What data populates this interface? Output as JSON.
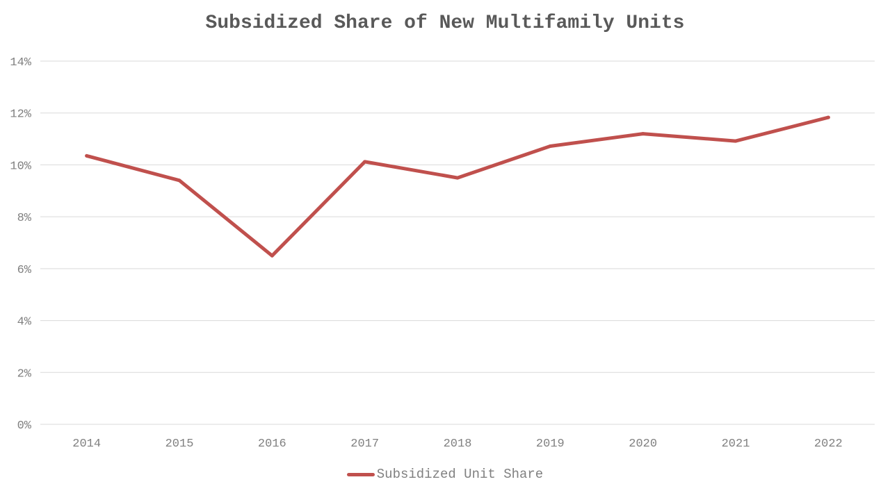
{
  "chart_data": {
    "type": "line",
    "title": "Subsidized Share of New Multifamily Units",
    "x": [
      "2014",
      "2015",
      "2016",
      "2017",
      "2018",
      "2019",
      "2020",
      "2021",
      "2022"
    ],
    "series": [
      {
        "name": "Subsidized Unit Share",
        "color": "#c0504d",
        "values": [
          10.35,
          9.4,
          6.5,
          10.12,
          9.5,
          10.72,
          11.2,
          10.92,
          11.83
        ]
      }
    ],
    "y_ticks": [
      "0%",
      "2%",
      "4%",
      "6%",
      "8%",
      "10%",
      "12%",
      "14%"
    ],
    "ylim": [
      0,
      14
    ],
    "y_unit": "%",
    "grid": "horizontal",
    "legend_position": "bottom"
  }
}
